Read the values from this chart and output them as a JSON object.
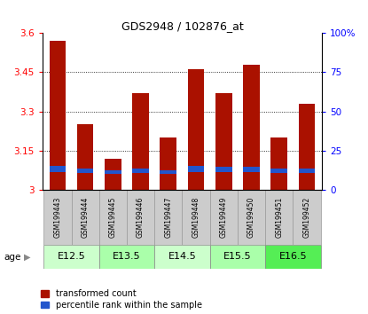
{
  "title": "GDS2948 / 102876_at",
  "samples": [
    "GSM199443",
    "GSM199444",
    "GSM199445",
    "GSM199446",
    "GSM199447",
    "GSM199448",
    "GSM199449",
    "GSM199450",
    "GSM199451",
    "GSM199452"
  ],
  "red_values": [
    3.57,
    3.25,
    3.12,
    3.37,
    3.2,
    3.46,
    3.37,
    3.48,
    3.2,
    3.33
  ],
  "blue_bottom": [
    3.07,
    3.065,
    3.06,
    3.065,
    3.06,
    3.07,
    3.07,
    3.07,
    3.065,
    3.065
  ],
  "blue_heights": [
    0.022,
    0.018,
    0.015,
    0.018,
    0.015,
    0.022,
    0.018,
    0.02,
    0.018,
    0.016
  ],
  "ylim": [
    3.0,
    3.6
  ],
  "yticks": [
    3.0,
    3.15,
    3.3,
    3.45,
    3.6
  ],
  "ytick_labels": [
    "3",
    "3.15",
    "3.3",
    "3.45",
    "3.6"
  ],
  "right_yticks": [
    0,
    25,
    50,
    75,
    100
  ],
  "right_ytick_labels": [
    "0",
    "25",
    "50",
    "75",
    "100%"
  ],
  "bar_color": "#AA1100",
  "blue_color": "#2255CC",
  "age_groups": [
    {
      "label": "E12.5",
      "start": 0,
      "end": 1,
      "color": "#CCFFCC"
    },
    {
      "label": "E13.5",
      "start": 2,
      "end": 3,
      "color": "#AAFFAA"
    },
    {
      "label": "E14.5",
      "start": 4,
      "end": 5,
      "color": "#CCFFCC"
    },
    {
      "label": "E15.5",
      "start": 6,
      "end": 7,
      "color": "#AAFFAA"
    },
    {
      "label": "E16.5",
      "start": 8,
      "end": 9,
      "color": "#55EE55"
    }
  ],
  "legend_labels": [
    "transformed count",
    "percentile rank within the sample"
  ],
  "age_label": "age",
  "bar_color_legend": "#CC1100",
  "blue_color_legend": "#2244BB"
}
